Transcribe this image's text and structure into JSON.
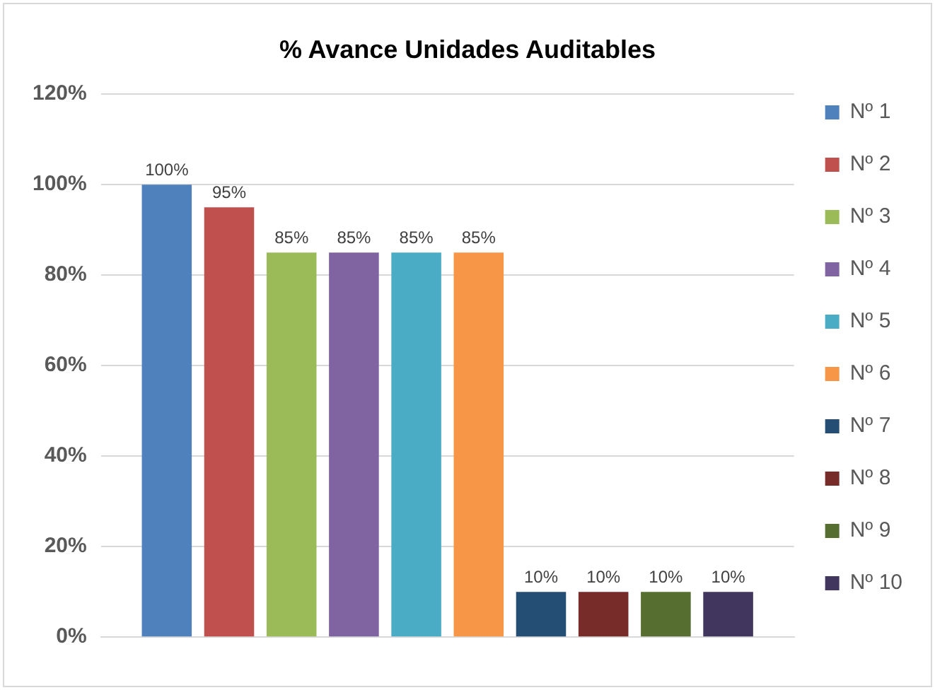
{
  "chart_data": {
    "type": "bar",
    "title": "% Avance Unidades Auditables",
    "categories": [
      null
    ],
    "ylim": [
      0,
      120
    ],
    "yticks": [
      {
        "value": 0,
        "label": "0%"
      },
      {
        "value": 20,
        "label": "20%"
      },
      {
        "value": 40,
        "label": "40%"
      },
      {
        "value": 60,
        "label": "60%"
      },
      {
        "value": 80,
        "label": "80%"
      },
      {
        "value": 100,
        "label": "100%"
      },
      {
        "value": 120,
        "label": "120%"
      }
    ],
    "grid": "y",
    "legend": "right",
    "series": [
      {
        "name": "Nº 1",
        "color": "#4f81bd",
        "values": [
          100
        ],
        "value_labels": [
          "100%"
        ]
      },
      {
        "name": "Nº 2",
        "color": "#c0504d",
        "values": [
          95
        ],
        "value_labels": [
          "95%"
        ]
      },
      {
        "name": "Nº 3",
        "color": "#9bbb59",
        "values": [
          85
        ],
        "value_labels": [
          "85%"
        ]
      },
      {
        "name": "Nº 4",
        "color": "#8064a2",
        "values": [
          85
        ],
        "value_labels": [
          "85%"
        ]
      },
      {
        "name": "Nº 5",
        "color": "#4bacc6",
        "values": [
          85
        ],
        "value_labels": [
          "85%"
        ]
      },
      {
        "name": "Nº 6",
        "color": "#f79646",
        "values": [
          85
        ],
        "value_labels": [
          "85%"
        ]
      },
      {
        "name": "Nº 7",
        "color": "#254e74",
        "values": [
          10
        ],
        "value_labels": [
          "10%"
        ]
      },
      {
        "name": "Nº 8",
        "color": "#772c2a",
        "values": [
          10
        ],
        "value_labels": [
          "10%"
        ]
      },
      {
        "name": "Nº 9",
        "color": "#566e30",
        "values": [
          10
        ],
        "value_labels": [
          "10%"
        ]
      },
      {
        "name": "Nº 10",
        "color": "#41365d",
        "values": [
          10
        ],
        "value_labels": [
          "10%"
        ]
      }
    ]
  }
}
